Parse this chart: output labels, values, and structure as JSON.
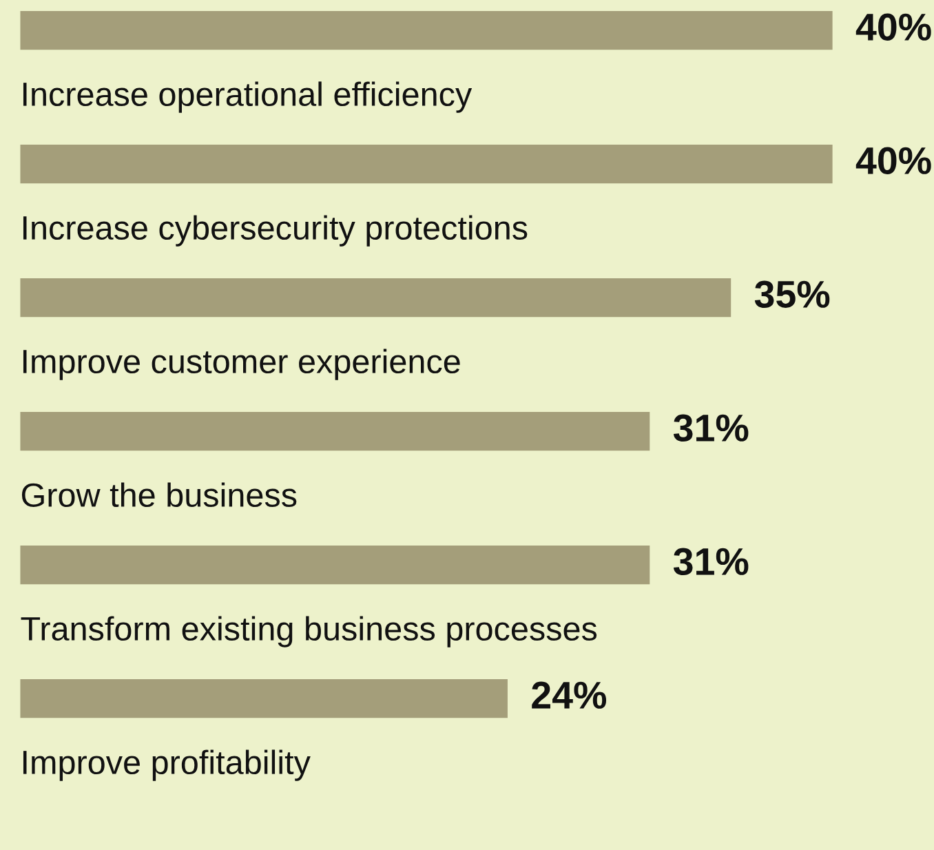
{
  "chart_data": {
    "type": "bar",
    "orientation": "horizontal",
    "categories": [
      "Increase operational efficiency",
      "Increase cybersecurity protections",
      "Improve customer experience",
      "Grow the business",
      "Transform existing business processes",
      "Improve profitability"
    ],
    "values": [
      40,
      40,
      35,
      31,
      31,
      24
    ],
    "value_labels": [
      "40%",
      "40%",
      "35%",
      "31%",
      "31%",
      "24%"
    ],
    "color": "#a49e7a",
    "xlim": [
      -1,
      45
    ],
    "tick_labels": false,
    "legend": false
  }
}
